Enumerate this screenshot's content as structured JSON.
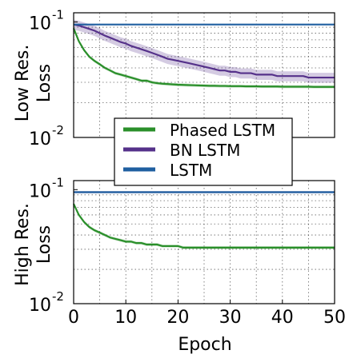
{
  "chart_data": [
    {
      "type": "line",
      "ylabel_line1": "Low Res.",
      "ylabel_line2": "Loss",
      "yscale": "log",
      "xlim": [
        0,
        50
      ],
      "ylim": [
        0.01,
        0.12
      ],
      "ytick_labels": [
        {
          "value": 0.1,
          "base": "10",
          "exp": "-1"
        },
        {
          "value": 0.01,
          "base": "10",
          "exp": "-2"
        }
      ],
      "grid": true,
      "series": [
        {
          "name": "Phased LSTM",
          "color": "#2a8f2a",
          "x": [
            0,
            1,
            2,
            3,
            4,
            5,
            6,
            7,
            8,
            9,
            10,
            11,
            12,
            13,
            14,
            15,
            16,
            17,
            18,
            19,
            20,
            21,
            22,
            23,
            24,
            25,
            26,
            27,
            28,
            29,
            30,
            31,
            32,
            33,
            34,
            35,
            36,
            37,
            38,
            39,
            40,
            41,
            42,
            43,
            44,
            45,
            46,
            47,
            48,
            49,
            50
          ],
          "y": [
            0.088,
            0.068,
            0.057,
            0.05,
            0.046,
            0.043,
            0.04,
            0.038,
            0.036,
            0.035,
            0.034,
            0.033,
            0.032,
            0.031,
            0.031,
            0.03,
            0.0295,
            0.0292,
            0.029,
            0.0288,
            0.0286,
            0.0285,
            0.0284,
            0.0283,
            0.0282,
            0.0281,
            0.028,
            0.028,
            0.0279,
            0.0279,
            0.0278,
            0.0278,
            0.0278,
            0.0277,
            0.0277,
            0.0277,
            0.0276,
            0.0276,
            0.0276,
            0.0276,
            0.0275,
            0.0275,
            0.0275,
            0.0275,
            0.0275,
            0.0275,
            0.0274,
            0.0274,
            0.0274,
            0.0274,
            0.0274
          ],
          "band": 0.03
        },
        {
          "name": "BN LSTM",
          "color": "#55318a",
          "x": [
            0,
            1,
            2,
            3,
            4,
            5,
            6,
            7,
            8,
            9,
            10,
            11,
            12,
            13,
            14,
            15,
            16,
            17,
            18,
            19,
            20,
            21,
            22,
            23,
            24,
            25,
            26,
            27,
            28,
            29,
            30,
            31,
            32,
            33,
            34,
            35,
            36,
            37,
            38,
            39,
            40,
            41,
            42,
            43,
            44,
            45,
            46,
            47,
            48,
            49,
            50
          ],
          "y": [
            0.095,
            0.093,
            0.09,
            0.087,
            0.084,
            0.08,
            0.076,
            0.073,
            0.07,
            0.067,
            0.065,
            0.062,
            0.06,
            0.058,
            0.056,
            0.054,
            0.052,
            0.05,
            0.048,
            0.047,
            0.046,
            0.045,
            0.044,
            0.043,
            0.042,
            0.041,
            0.04,
            0.039,
            0.038,
            0.038,
            0.037,
            0.037,
            0.036,
            0.036,
            0.036,
            0.035,
            0.035,
            0.035,
            0.035,
            0.034,
            0.034,
            0.034,
            0.034,
            0.034,
            0.034,
            0.033,
            0.033,
            0.033,
            0.033,
            0.033,
            0.033
          ],
          "band": 0.1
        },
        {
          "name": "LSTM",
          "color": "#1f5fa0",
          "x": [
            0,
            50
          ],
          "y": [
            0.095,
            0.095
          ],
          "band": 0.0
        }
      ]
    },
    {
      "type": "line",
      "ylabel_line1": "High Res.",
      "ylabel_line2": "Loss",
      "xlabel": "Epoch",
      "yscale": "log",
      "xlim": [
        0,
        50
      ],
      "ylim": [
        0.01,
        0.12
      ],
      "ytick_labels": [
        {
          "value": 0.1,
          "base": "10",
          "exp": "-1"
        },
        {
          "value": 0.01,
          "base": "10",
          "exp": "-2"
        }
      ],
      "xtick_labels": [
        "0",
        "10",
        "20",
        "30",
        "40",
        "50"
      ],
      "xticks": [
        0,
        10,
        20,
        30,
        40,
        50
      ],
      "grid": true,
      "series": [
        {
          "name": "Phased LSTM",
          "color": "#2a8f2a",
          "x": [
            0,
            1,
            2,
            3,
            4,
            5,
            6,
            7,
            8,
            9,
            10,
            11,
            12,
            13,
            14,
            15,
            16,
            17,
            18,
            19,
            20,
            21,
            22,
            23,
            24,
            25,
            26,
            27,
            28,
            29,
            30,
            31,
            32,
            33,
            34,
            35,
            36,
            37,
            38,
            39,
            40,
            41,
            42,
            43,
            44,
            45,
            46,
            47,
            48,
            49,
            50
          ],
          "y": [
            0.075,
            0.06,
            0.052,
            0.047,
            0.044,
            0.042,
            0.04,
            0.038,
            0.037,
            0.036,
            0.035,
            0.035,
            0.034,
            0.034,
            0.033,
            0.033,
            0.033,
            0.032,
            0.032,
            0.032,
            0.032,
            0.031,
            0.031,
            0.031,
            0.031,
            0.031,
            0.031,
            0.031,
            0.031,
            0.031,
            0.031,
            0.031,
            0.031,
            0.031,
            0.031,
            0.031,
            0.031,
            0.031,
            0.031,
            0.031,
            0.031,
            0.031,
            0.031,
            0.031,
            0.031,
            0.031,
            0.031,
            0.031,
            0.031,
            0.031,
            0.031
          ],
          "band": 0.03
        },
        {
          "name": "BN LSTM",
          "color": "#55318a",
          "x": [
            0,
            50
          ],
          "y": [
            0.095,
            0.095
          ],
          "band": 0.0
        },
        {
          "name": "LSTM",
          "color": "#1f5fa0",
          "x": [
            0,
            50
          ],
          "y": [
            0.095,
            0.095
          ],
          "band": 0.0
        }
      ]
    }
  ]
}
